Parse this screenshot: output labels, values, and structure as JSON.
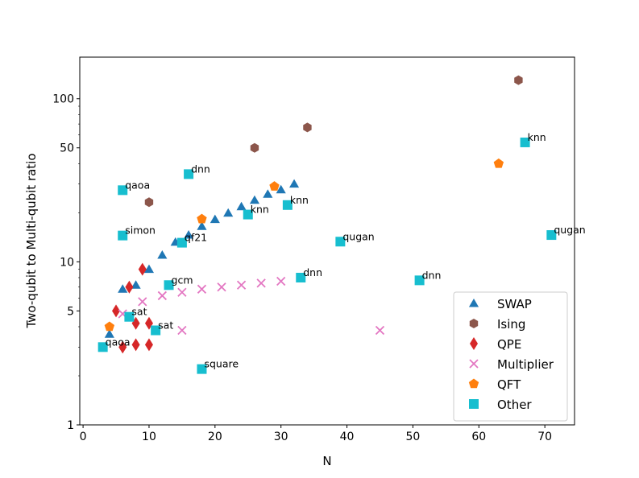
{
  "chart_data": {
    "type": "scatter",
    "xlabel": "N",
    "ylabel": "Two-qubit to Multi-qubit ratio",
    "xlim": [
      -0.5,
      74.5
    ],
    "ylim": [
      1,
      180
    ],
    "yscale": "log",
    "x_ticks": [
      0,
      10,
      20,
      30,
      40,
      50,
      60,
      70
    ],
    "y_ticks": [
      1,
      5,
      10,
      50,
      100
    ],
    "legend_position": "lower-right",
    "grid": false,
    "series": [
      {
        "name": "SWAP",
        "color": "#1f77b4",
        "marker": "triangle",
        "points": [
          [
            4,
            3.6
          ],
          [
            6,
            6.8
          ],
          [
            8,
            7.2
          ],
          [
            10,
            9
          ],
          [
            12,
            11
          ],
          [
            14,
            13.2
          ],
          [
            16,
            14.6
          ],
          [
            18,
            16.5
          ],
          [
            20,
            18.2
          ],
          [
            22,
            19.9
          ],
          [
            24,
            21.8
          ],
          [
            26,
            23.9
          ],
          [
            28,
            26
          ],
          [
            30,
            27.7
          ],
          [
            32,
            30
          ]
        ]
      },
      {
        "name": "Ising",
        "color": "#8c564b",
        "marker": "hexagon",
        "points": [
          [
            10,
            23.2
          ],
          [
            26,
            50
          ],
          [
            34,
            66.7
          ],
          [
            66,
            130
          ]
        ]
      },
      {
        "name": "QPE",
        "color": "#d62728",
        "marker": "diamond",
        "points": [
          [
            5,
            5
          ],
          [
            6,
            3
          ],
          [
            7,
            7
          ],
          [
            8,
            3.1
          ],
          [
            8,
            4.2
          ],
          [
            9,
            9
          ],
          [
            10,
            3.1
          ],
          [
            10,
            4.2
          ]
        ]
      },
      {
        "name": "Multiplier",
        "color": "#e377c2",
        "marker": "x",
        "points": [
          [
            6,
            4.8
          ],
          [
            9,
            5.7
          ],
          [
            12,
            6.2
          ],
          [
            15,
            6.5
          ],
          [
            18,
            6.8
          ],
          [
            21,
            7
          ],
          [
            24,
            7.2
          ],
          [
            27,
            7.4
          ],
          [
            30,
            7.6
          ],
          [
            15,
            3.8
          ],
          [
            45,
            3.8
          ]
        ]
      },
      {
        "name": "QFT",
        "color": "#ff7f0e",
        "marker": "pentagon",
        "points": [
          [
            4,
            4
          ],
          [
            18,
            18.3
          ],
          [
            29,
            29
          ],
          [
            63,
            40
          ]
        ]
      },
      {
        "name": "Other",
        "color": "#17becf",
        "marker": "square",
        "points": [
          [
            3,
            3
          ],
          [
            6,
            27.5
          ],
          [
            6,
            14.5
          ],
          [
            7,
            4.6
          ],
          [
            11,
            3.8
          ],
          [
            13,
            7.2
          ],
          [
            15,
            13.1
          ],
          [
            16,
            34.5
          ],
          [
            18,
            2.2
          ],
          [
            25,
            19.5
          ],
          [
            31,
            22.3
          ],
          [
            33,
            8
          ],
          [
            39,
            13.3
          ],
          [
            51,
            7.7
          ],
          [
            67,
            54
          ],
          [
            71,
            14.6
          ]
        ]
      }
    ],
    "annotations": [
      {
        "text": "qaoa",
        "x": 3,
        "y": 3
      },
      {
        "text": "qaoa",
        "x": 6,
        "y": 27.5
      },
      {
        "text": "simon",
        "x": 6,
        "y": 14.5
      },
      {
        "text": "sat",
        "x": 7,
        "y": 4.6
      },
      {
        "text": "sat",
        "x": 11,
        "y": 3.8
      },
      {
        "text": "gcm",
        "x": 13,
        "y": 7.2
      },
      {
        "text": "qf21",
        "x": 15,
        "y": 13.1
      },
      {
        "text": "dnn",
        "x": 16,
        "y": 34.5
      },
      {
        "text": "square",
        "x": 18,
        "y": 2.2
      },
      {
        "text": "knn",
        "x": 25,
        "y": 19.5
      },
      {
        "text": "knn",
        "x": 31,
        "y": 22.3
      },
      {
        "text": "dnn",
        "x": 33,
        "y": 8
      },
      {
        "text": "qugan",
        "x": 39,
        "y": 13.3
      },
      {
        "text": "dnn",
        "x": 51,
        "y": 7.7
      },
      {
        "text": "knn",
        "x": 67,
        "y": 54
      },
      {
        "text": "qugan",
        "x": 71,
        "y": 14.6
      }
    ]
  }
}
